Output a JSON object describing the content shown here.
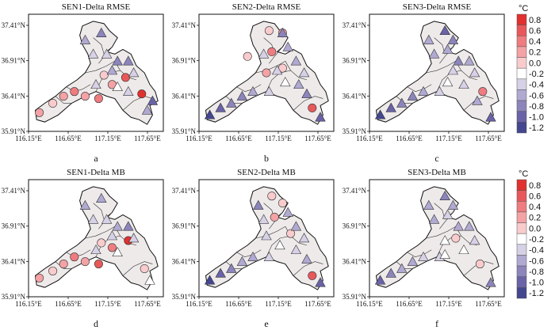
{
  "panels": [
    {
      "title": "SEN1-Delta RMSE",
      "label": "a"
    },
    {
      "title": "SEN2-Delta RMSE",
      "label": "b"
    },
    {
      "title": "SEN3-Delta RMSE",
      "label": "c"
    },
    {
      "title": "SEN1-Delta MB",
      "label": "d"
    },
    {
      "title": "SEN2-Delta MB",
      "label": "e"
    },
    {
      "title": "SEN3-Delta MB",
      "label": "f"
    }
  ],
  "axes": {
    "x_ticks": [
      "116.15°E",
      "116.65°E",
      "117.15°E",
      "117.65°E"
    ],
    "y_ticks": [
      "37.41°N",
      "36.91°N",
      "36.41°N",
      "35.91°N"
    ]
  },
  "colorbar": {
    "unit": "°C",
    "ticks": [
      "0.8",
      "0.6",
      "0.4",
      "0.2",
      "0.0",
      "-0.2",
      "-0.4",
      "-0.6",
      "-0.8",
      "-1.0",
      "-1.2"
    ],
    "colors": [
      "#e0312f",
      "#e8585a",
      "#ef7c80",
      "#f4a2a5",
      "#f9cbcd",
      "#ffffff",
      "#d6d1e6",
      "#b0a9d1",
      "#8c85bc",
      "#6a63a8",
      "#444690"
    ]
  },
  "colors": {
    "region_fill": "#eeeaea",
    "region_stroke": "#111111"
  }
}
